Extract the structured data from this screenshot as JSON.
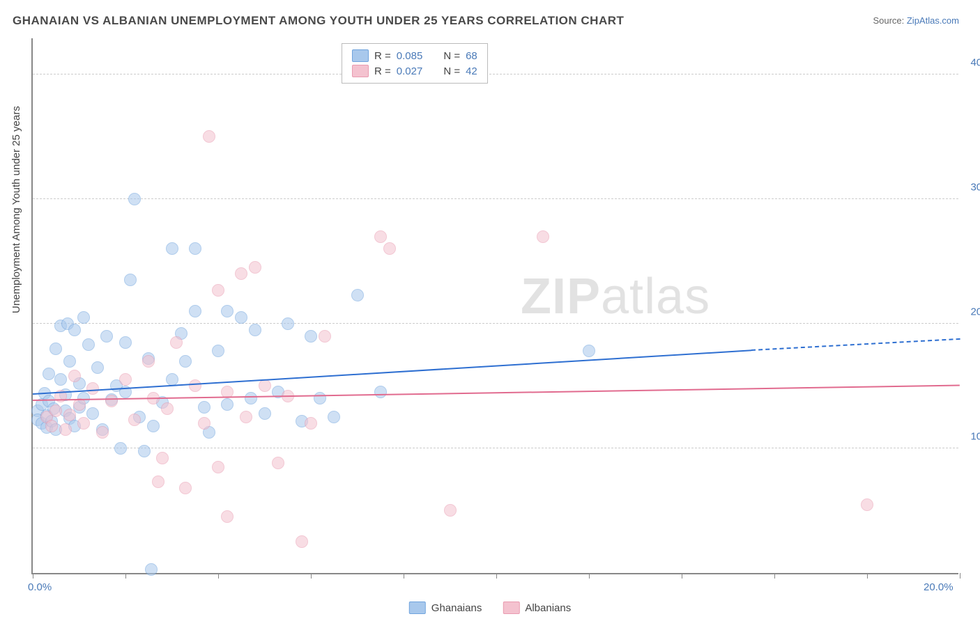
{
  "title": "GHANAIAN VS ALBANIAN UNEMPLOYMENT AMONG YOUTH UNDER 25 YEARS CORRELATION CHART",
  "source_label": "Source: ",
  "source_name": "ZipAtlas.com",
  "ylabel": "Unemployment Among Youth under 25 years",
  "watermark_bold": "ZIP",
  "watermark_light": "atlas",
  "chart": {
    "type": "scatter",
    "background_color": "#ffffff",
    "grid_color": "#cccccc",
    "axis_color": "#888888",
    "tick_label_color": "#4a7ab8",
    "xlim": [
      0,
      20
    ],
    "ylim": [
      0,
      43
    ],
    "xticks": [
      0,
      2,
      4,
      6,
      8,
      10,
      12,
      14,
      16,
      18,
      20
    ],
    "xtick_labels": {
      "0": "0.0%",
      "20": "20.0%"
    },
    "yticks": [
      10,
      20,
      30,
      40
    ],
    "ytick_labels": [
      "10.0%",
      "20.0%",
      "30.0%",
      "40.0%"
    ],
    "marker_radius": 9,
    "marker_opacity": 0.55,
    "series": [
      {
        "name": "Ghanaians",
        "color_fill": "#a8c8ec",
        "color_stroke": "#6fa3dd",
        "R": "0.085",
        "N": "68",
        "trend": {
          "x1": 0,
          "y1": 14.3,
          "x2": 15.5,
          "y2": 17.8,
          "x_dash_from": 15.5,
          "x3": 20,
          "y3": 18.7,
          "color": "#2e6fd1"
        },
        "points": [
          [
            0.1,
            13.0
          ],
          [
            0.1,
            12.3
          ],
          [
            0.2,
            12.0
          ],
          [
            0.2,
            13.5
          ],
          [
            0.25,
            14.4
          ],
          [
            0.3,
            11.7
          ],
          [
            0.3,
            12.6
          ],
          [
            0.35,
            13.8
          ],
          [
            0.35,
            16.0
          ],
          [
            0.4,
            12.2
          ],
          [
            0.45,
            13.2
          ],
          [
            0.5,
            11.5
          ],
          [
            0.5,
            18.0
          ],
          [
            0.6,
            15.5
          ],
          [
            0.6,
            19.8
          ],
          [
            0.7,
            14.3
          ],
          [
            0.7,
            13.0
          ],
          [
            0.75,
            20.0
          ],
          [
            0.8,
            17.0
          ],
          [
            0.8,
            12.4
          ],
          [
            0.9,
            19.5
          ],
          [
            0.9,
            11.8
          ],
          [
            1.0,
            15.2
          ],
          [
            1.0,
            13.3
          ],
          [
            1.1,
            20.5
          ],
          [
            1.1,
            14.0
          ],
          [
            1.2,
            18.3
          ],
          [
            1.3,
            12.8
          ],
          [
            1.4,
            16.5
          ],
          [
            1.5,
            11.5
          ],
          [
            1.6,
            19.0
          ],
          [
            1.7,
            13.9
          ],
          [
            1.8,
            15.0
          ],
          [
            1.9,
            10.0
          ],
          [
            2.0,
            14.5
          ],
          [
            2.1,
            23.5
          ],
          [
            2.2,
            30.0
          ],
          [
            2.3,
            12.5
          ],
          [
            2.4,
            9.8
          ],
          [
            2.5,
            17.2
          ],
          [
            2.55,
            0.3
          ],
          [
            2.6,
            11.8
          ],
          [
            2.8,
            13.7
          ],
          [
            3.0,
            15.5
          ],
          [
            3.0,
            26.0
          ],
          [
            3.2,
            19.2
          ],
          [
            3.7,
            13.3
          ],
          [
            3.5,
            26.0
          ],
          [
            3.5,
            21.0
          ],
          [
            3.8,
            11.3
          ],
          [
            4.0,
            17.8
          ],
          [
            4.2,
            13.5
          ],
          [
            4.5,
            20.5
          ],
          [
            4.7,
            14.0
          ],
          [
            4.8,
            19.5
          ],
          [
            5.0,
            12.8
          ],
          [
            5.3,
            14.5
          ],
          [
            5.5,
            20.0
          ],
          [
            5.8,
            12.2
          ],
          [
            6.0,
            19.0
          ],
          [
            6.2,
            14.0
          ],
          [
            6.5,
            12.5
          ],
          [
            7.0,
            22.3
          ],
          [
            7.5,
            14.5
          ],
          [
            12.0,
            17.8
          ],
          [
            4.2,
            21.0
          ],
          [
            2.0,
            18.5
          ],
          [
            3.3,
            17.0
          ]
        ]
      },
      {
        "name": "Albanians",
        "color_fill": "#f4c2cf",
        "color_stroke": "#e99bb0",
        "R": "0.027",
        "N": "42",
        "trend": {
          "x1": 0,
          "y1": 13.8,
          "x2": 20,
          "y2": 15.0,
          "color": "#e16b8f"
        },
        "points": [
          [
            0.3,
            12.5
          ],
          [
            0.4,
            11.8
          ],
          [
            0.5,
            13.0
          ],
          [
            0.6,
            14.2
          ],
          [
            0.7,
            11.5
          ],
          [
            0.8,
            12.7
          ],
          [
            0.9,
            15.8
          ],
          [
            1.0,
            13.5
          ],
          [
            1.1,
            12.0
          ],
          [
            1.3,
            14.8
          ],
          [
            1.5,
            11.3
          ],
          [
            1.7,
            13.8
          ],
          [
            2.0,
            15.5
          ],
          [
            2.2,
            12.3
          ],
          [
            2.5,
            17.0
          ],
          [
            2.6,
            14.0
          ],
          [
            2.8,
            9.2
          ],
          [
            2.9,
            13.2
          ],
          [
            2.7,
            7.3
          ],
          [
            3.1,
            18.5
          ],
          [
            3.3,
            6.8
          ],
          [
            3.5,
            15.0
          ],
          [
            3.7,
            12.0
          ],
          [
            3.8,
            35.0
          ],
          [
            4.0,
            8.5
          ],
          [
            4.0,
            22.7
          ],
          [
            4.2,
            4.5
          ],
          [
            4.2,
            14.5
          ],
          [
            4.5,
            24.0
          ],
          [
            4.6,
            12.5
          ],
          [
            4.8,
            24.5
          ],
          [
            5.0,
            15.0
          ],
          [
            5.3,
            8.8
          ],
          [
            5.5,
            14.2
          ],
          [
            5.8,
            2.5
          ],
          [
            6.3,
            19.0
          ],
          [
            7.5,
            27.0
          ],
          [
            7.7,
            26.0
          ],
          [
            9.0,
            5.0
          ],
          [
            11.0,
            27.0
          ],
          [
            18.0,
            5.5
          ],
          [
            6.0,
            12.0
          ]
        ]
      }
    ]
  },
  "legend_top_labels": {
    "R": "R =",
    "N": "N ="
  },
  "legend_bottom": [
    "Ghanaians",
    "Albanians"
  ]
}
